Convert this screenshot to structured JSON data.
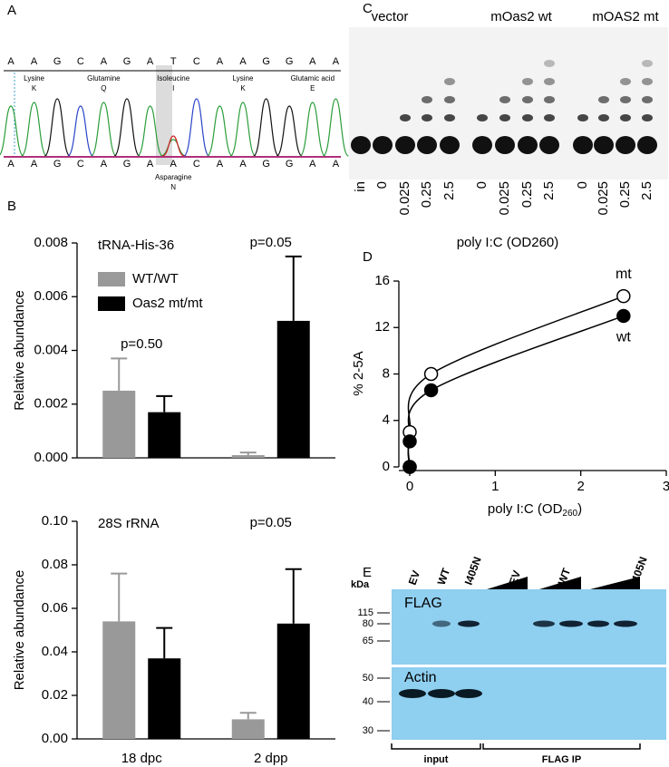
{
  "panels": {
    "A": {
      "label": "A",
      "reference_sequence": [
        "A",
        "A",
        "G",
        "C",
        "A",
        "G",
        "A",
        "T",
        "C",
        "A",
        "A",
        "G",
        "G",
        "A",
        "A"
      ],
      "reference_amino_acids": [
        {
          "name": "Lysine",
          "code": "K"
        },
        {
          "name": "Glutamine",
          "code": "Q"
        },
        {
          "name": "Isoleucine",
          "code": "I"
        },
        {
          "name": "Lysine",
          "code": "K"
        },
        {
          "name": "Glutamic acid",
          "code": "E"
        }
      ],
      "sample_sequence": [
        "A",
        "A",
        "G",
        "C",
        "A",
        "G",
        "A",
        "A",
        "C",
        "A",
        "A",
        "G",
        "G",
        "A",
        "A"
      ],
      "mutant_amino_acid": {
        "name": "Asparagine",
        "code": "N"
      }
    },
    "C": {
      "label": "C",
      "groups": [
        "vector",
        "mOas2 wt",
        "mOAS2 mt"
      ],
      "lanes": [
        "in",
        "0",
        "0.025",
        "0.25",
        "2.5",
        "0",
        "0.025",
        "0.25",
        "2.5",
        "0",
        "0.025",
        "0.25",
        "2.5"
      ],
      "xlabel": "poly I:C (OD260)"
    },
    "E": {
      "label": "E",
      "unit": "kDa",
      "lanes": [
        "EV",
        "WT",
        "I405N",
        "EV",
        "WT",
        "I405N"
      ],
      "markers": [
        "115",
        "80",
        "65",
        "50",
        "40",
        "30"
      ],
      "blots": [
        "FLAG",
        "Actin"
      ],
      "groups": [
        "input",
        "FLAG IP"
      ]
    }
  },
  "chart_data": [
    {
      "type": "bar",
      "panel_label": "B",
      "title": "tRNA-His-36",
      "ylabel": "Relative abundance",
      "categories": [
        null,
        null
      ],
      "series": [
        {
          "name": "WT/WT",
          "color": "#999999",
          "values": [
            0.0025,
            0.0001
          ],
          "errors": [
            0.0012,
            0.0001
          ]
        },
        {
          "name": "Oas2 mt/mt",
          "color": "#000000",
          "values": [
            0.0017,
            0.0051
          ],
          "errors": [
            0.0006,
            0.0024
          ]
        }
      ],
      "ylim": [
        0,
        0.008
      ],
      "yticks": [
        {
          "value": 0,
          "label": "0.000"
        },
        {
          "value": 0.002,
          "label": "0.002"
        },
        {
          "value": 0.004,
          "label": "0.004"
        },
        {
          "value": 0.006,
          "label": "0.006"
        },
        {
          "value": 0.008,
          "label": "0.008"
        }
      ],
      "annotations": [
        "p=0.50",
        "p=0.05"
      ],
      "legend": "upper left"
    },
    {
      "type": "bar",
      "title": "28S rRNA",
      "ylabel": "Relative abundance",
      "categories": [
        "18 dpc",
        "2 dpp"
      ],
      "series": [
        {
          "color": "#999999",
          "values": [
            0.054,
            0.009
          ],
          "errors": [
            0.022,
            0.003
          ]
        },
        {
          "color": "#000000",
          "values": [
            0.037,
            0.053
          ],
          "errors": [
            0.014,
            0.025
          ]
        }
      ],
      "ylim": [
        0,
        0.1
      ],
      "yticks": [
        {
          "value": 0,
          "label": "0.00"
        },
        {
          "value": 0.02,
          "label": "0.02"
        },
        {
          "value": 0.04,
          "label": "0.04"
        },
        {
          "value": 0.06,
          "label": "0.06"
        },
        {
          "value": 0.08,
          "label": "0.08"
        },
        {
          "value": 0.1,
          "label": "0.10"
        }
      ],
      "annotations": [
        "p=0.05"
      ]
    },
    {
      "type": "scatter",
      "panel_label": "D",
      "ylabel": "% 2-5A",
      "xlabel": [
        "poly I:C (OD",
        "260",
        ")"
      ],
      "series": [
        {
          "name": "mt",
          "color": "#ffffff",
          "x": [
            0,
            0,
            0.25,
            2.5
          ],
          "values": [
            0,
            3,
            8,
            14.7
          ]
        },
        {
          "name": "wt",
          "color": "#000000",
          "x": [
            0,
            0,
            0.25,
            2.5
          ],
          "values": [
            0,
            2.2,
            6.6,
            13
          ]
        }
      ],
      "xlim": [
        0,
        3
      ],
      "ylim": [
        0,
        16
      ],
      "xticks": [
        0,
        1,
        2,
        3
      ],
      "yticks": [
        0,
        4,
        8,
        12,
        16
      ],
      "fit_line": true
    }
  ]
}
